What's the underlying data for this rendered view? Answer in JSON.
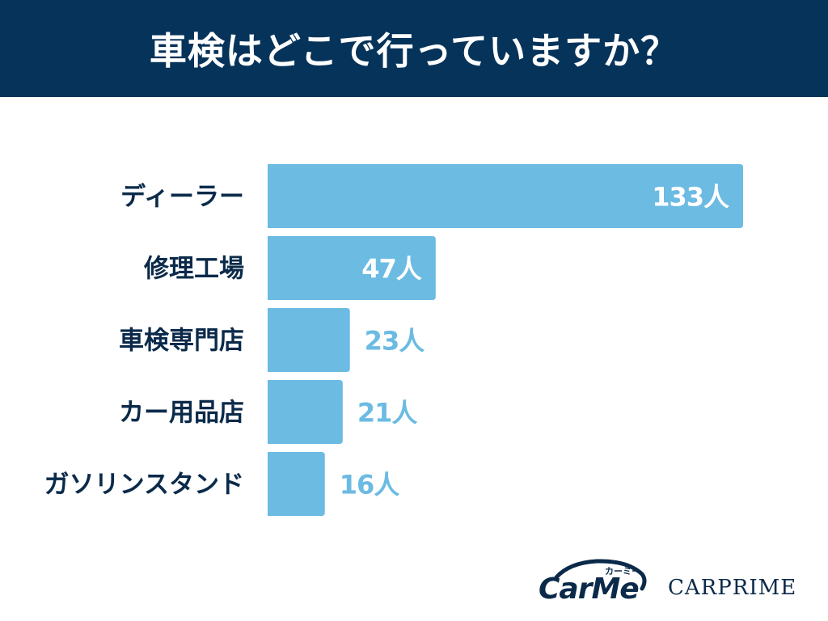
{
  "title": "車検はどこで行っていますか？",
  "colors": {
    "header_bg": "#06335a",
    "header_text": "#ffffff",
    "bar": "#6bbbe3",
    "category_text": "#0b2a4a",
    "value_inside": "#ffffff",
    "value_outside": "#6bbbe3"
  },
  "chart_data": {
    "type": "bar",
    "orientation": "horizontal",
    "categories": [
      "ディーラー",
      "修理工場",
      "車検専門店",
      "カー用品店",
      "ガソリンスタンド"
    ],
    "values": [
      133,
      47,
      23,
      21,
      16
    ],
    "value_labels": [
      "133人",
      "47人",
      "23人",
      "21人",
      "16人"
    ],
    "unit": "人",
    "xlim": [
      0,
      133
    ],
    "title": "車検はどこで行っていますか？",
    "xlabel": "",
    "ylabel": "",
    "grid": false,
    "legend": "none"
  },
  "logos": {
    "carme": {
      "text": "CarMe",
      "kana": "カーミー",
      "color": "#0b2a4a"
    },
    "carprime": {
      "text": "CARPRIME",
      "color": "#0b2a4a"
    }
  }
}
